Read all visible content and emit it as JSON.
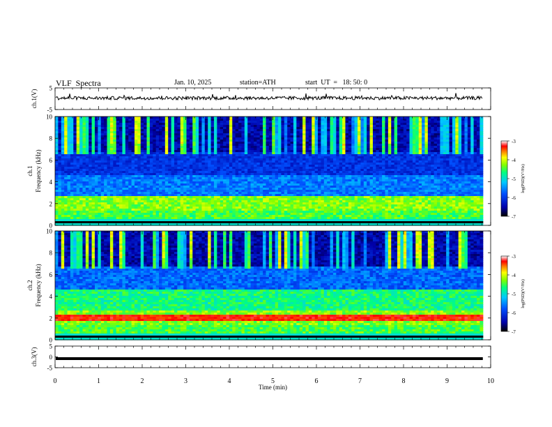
{
  "header": {
    "title": "VLF  Spectra",
    "date": "Jan. 10, 2025",
    "station": "station=ATH",
    "start": "start  UT  =   18: 50: 0"
  },
  "chart_data": [
    {
      "type": "line",
      "ylabel": "ch.1(V)",
      "ylim": [
        -5,
        5
      ],
      "yticks": [
        "5",
        "-5"
      ],
      "description_values": "noisy waveform near +0.3 V",
      "level": 0.3,
      "color": "#000000"
    },
    {
      "type": "heatmap",
      "ylabel": "ch.1\nFrequency (kHz)",
      "ylim": [
        0,
        10
      ],
      "yticks": [
        "0",
        "2",
        "4",
        "6",
        "8",
        "10"
      ],
      "colorbar": {
        "label": "log(PSD)(V²/Hz)",
        "range": [
          -7,
          -3
        ],
        "ticks": [
          "-3",
          "-4",
          "-5",
          "-6",
          "-7"
        ]
      }
    },
    {
      "type": "heatmap",
      "ylabel": "ch.2\nFrequency (kHz)",
      "ylim": [
        0,
        10
      ],
      "yticks": [
        "0",
        "2",
        "4",
        "6",
        "8",
        "10"
      ],
      "colorbar": {
        "label": "log(PSD)(V²/Hz)",
        "range": [
          -7,
          -3
        ],
        "ticks": [
          "-3",
          "-4",
          "-5",
          "-6",
          "-7"
        ]
      }
    },
    {
      "type": "line",
      "ylabel": "ch.3(V)",
      "ylim": [
        -5,
        5
      ],
      "yticks": [
        "5",
        "0",
        "-5"
      ],
      "level": -0.8,
      "color": "#000000"
    }
  ],
  "xaxis": {
    "label": "Time  (min)",
    "xlim": [
      0,
      10
    ],
    "ticks": [
      "0",
      "1",
      "2",
      "3",
      "4",
      "5",
      "6",
      "7",
      "8",
      "9",
      "10"
    ],
    "data_end": 9.82
  },
  "colors": {
    "scale": [
      "#000000",
      "#0000cc",
      "#0060ff",
      "#00c8ff",
      "#00ff80",
      "#80ff00",
      "#ffff00",
      "#ff8000",
      "#ff0000",
      "#ffffff"
    ]
  }
}
